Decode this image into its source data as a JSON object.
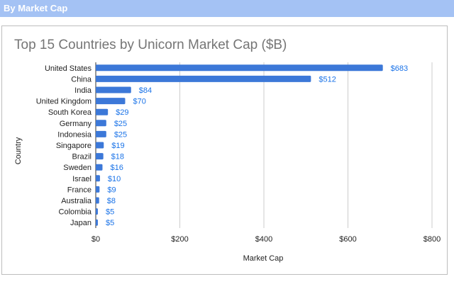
{
  "header": {
    "title": "By Market Cap"
  },
  "colors": {
    "header_bg": "#a4c2f4",
    "bar": "#3c78d8",
    "data_label": "#1a73e8",
    "grid": "#cccccc"
  },
  "chart_data": {
    "type": "bar",
    "orientation": "horizontal",
    "title": "Top 15 Countries by Unicorn Market Cap ($B)",
    "xlabel": "Market Cap",
    "ylabel": "Country",
    "categories": [
      "United States",
      "China",
      "India",
      "United Kingdom",
      "South Korea",
      "Germany",
      "Indonesia",
      "Singapore",
      "Brazil",
      "Sweden",
      "Israel",
      "France",
      "Australia",
      "Colombia",
      "Japan"
    ],
    "values": [
      683,
      512,
      84,
      70,
      29,
      25,
      25,
      19,
      18,
      16,
      10,
      9,
      8,
      5,
      5
    ],
    "data_labels": [
      "$683",
      "$512",
      "$84",
      "$70",
      "$29",
      "$25",
      "$25",
      "$19",
      "$18",
      "$16",
      "$10",
      "$9",
      "$8",
      "$5",
      "$5"
    ],
    "xlim": [
      0,
      800
    ],
    "xticks": [
      0,
      200,
      400,
      600,
      800
    ],
    "xtick_labels": [
      "$0",
      "$200",
      "$400",
      "$600",
      "$800"
    ],
    "grid": true,
    "legend": "none"
  }
}
